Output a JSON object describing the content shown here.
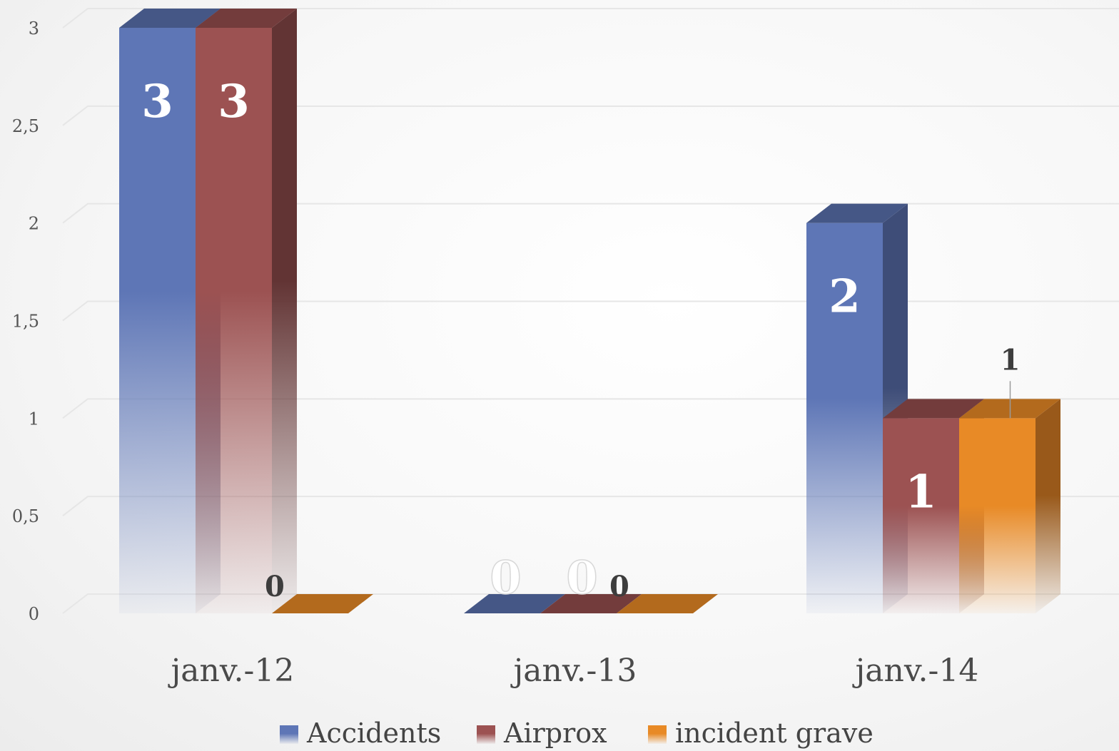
{
  "chart_data": {
    "type": "bar",
    "style": "3d-clustered-column",
    "title": "",
    "xlabel": "",
    "ylabel": "",
    "categories": [
      "janv.-12",
      "janv.-13",
      "janv.-14"
    ],
    "ylim": [
      0,
      3
    ],
    "yticks": [
      "0",
      "0,5",
      "1",
      "1,5",
      "2",
      "2,5",
      "3"
    ],
    "ytick_values": [
      0,
      0.5,
      1,
      1.5,
      2,
      2.5,
      3
    ],
    "grid": true,
    "legend_position": "bottom",
    "series": [
      {
        "name": "Accidents",
        "values": [
          3,
          0,
          2
        ],
        "labels": [
          "3",
          "0",
          "2"
        ],
        "color": "#5e76b6",
        "top": "#455786",
        "side": "#3e4d78"
      },
      {
        "name": "Airprox",
        "values": [
          3,
          0,
          1
        ],
        "labels": [
          "3",
          "0",
          "1"
        ],
        "color": "#9c5252",
        "top": "#733c3c",
        "side": "#623434"
      },
      {
        "name": "incident grave",
        "values": [
          0,
          0,
          1
        ],
        "labels": [
          "0",
          "0",
          "1"
        ],
        "color": "#e88a26",
        "top": "#b36a1d",
        "side": "#99591a"
      }
    ]
  }
}
